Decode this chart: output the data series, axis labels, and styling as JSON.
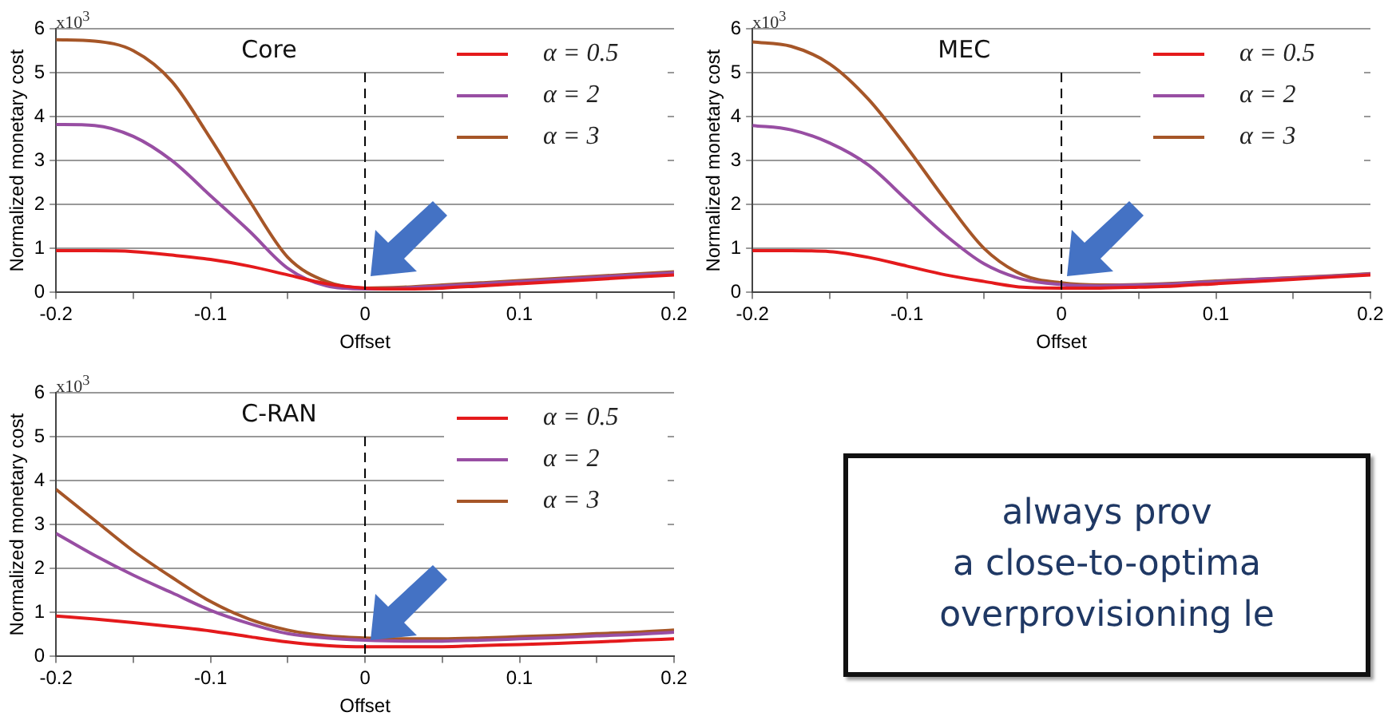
{
  "chart_data": [
    {
      "type": "line",
      "title": "Core",
      "xlabel": "Offset",
      "ylabel": "Normalized monetary cost",
      "annotations": [
        "x10$^{3}$"
      ],
      "x": [
        -0.2,
        -0.175,
        -0.15,
        -0.125,
        -0.1,
        -0.075,
        -0.05,
        -0.025,
        0,
        0.025,
        0.05,
        0.075,
        0.1,
        0.125,
        0.15,
        0.175,
        0.2
      ],
      "series": [
        {
          "name": "α = 0.5",
          "color": "#e41a1c",
          "values": [
            0.95,
            0.95,
            0.93,
            0.85,
            0.75,
            0.6,
            0.4,
            0.2,
            0.1,
            0.08,
            0.1,
            0.15,
            0.2,
            0.25,
            0.3,
            0.35,
            0.4
          ]
        },
        {
          "name": "α = 2",
          "color": "#984ea3",
          "values": [
            3.82,
            3.8,
            3.55,
            3.0,
            2.2,
            1.4,
            0.55,
            0.15,
            0.08,
            0.1,
            0.15,
            0.2,
            0.25,
            0.3,
            0.35,
            0.4,
            0.45
          ]
        },
        {
          "name": "α = 3",
          "color": "#a65628",
          "values": [
            5.75,
            5.72,
            5.5,
            4.8,
            3.5,
            2.1,
            0.8,
            0.25,
            0.1,
            0.12,
            0.17,
            0.22,
            0.27,
            0.32,
            0.37,
            0.42,
            0.47
          ]
        }
      ],
      "xlim": [
        -0.2,
        0.2
      ],
      "xticks": [
        -0.2,
        {
          "value": -0.15,
          "label": null
        },
        -0.1,
        {
          "value": -0.05,
          "label": null
        },
        0,
        {
          "value": 0.05,
          "label": null
        },
        0.1,
        {
          "value": 0.15,
          "label": null
        },
        0.2
      ],
      "ylim": [
        0,
        6
      ],
      "yticks": [
        0,
        1,
        2,
        3,
        4,
        5,
        6
      ],
      "grid": "y",
      "legend": "top right",
      "marker": "none",
      "line_style": "solid",
      "ref_lines": [
        {
          "axis": "x",
          "value": 0,
          "color": "#000000",
          "line_style": "dashed"
        }
      ]
    },
    {
      "type": "line",
      "title": "MEC",
      "xlabel": "Offset",
      "ylabel": "Normalized monetary cost",
      "annotations": [
        "x10$^{3}$"
      ],
      "x": [
        -0.2,
        -0.175,
        -0.15,
        -0.125,
        -0.1,
        -0.075,
        -0.05,
        -0.025,
        0,
        0.025,
        0.05,
        0.075,
        0.1,
        0.125,
        0.15,
        0.175,
        0.2
      ],
      "series": [
        {
          "name": "α = 0.5",
          "color": "#e41a1c",
          "values": [
            0.95,
            0.95,
            0.93,
            0.8,
            0.6,
            0.4,
            0.25,
            0.12,
            0.1,
            0.1,
            0.12,
            0.15,
            0.2,
            0.25,
            0.3,
            0.35,
            0.4
          ]
        },
        {
          "name": "α = 2",
          "color": "#984ea3",
          "values": [
            3.8,
            3.7,
            3.4,
            2.9,
            2.1,
            1.3,
            0.65,
            0.3,
            0.18,
            0.15,
            0.17,
            0.2,
            0.25,
            0.3,
            0.33,
            0.37,
            0.42
          ]
        },
        {
          "name": "α = 3",
          "color": "#a65628",
          "values": [
            5.7,
            5.6,
            5.2,
            4.4,
            3.3,
            2.1,
            1.0,
            0.4,
            0.22,
            0.17,
            0.18,
            0.21,
            0.26,
            0.3,
            0.34,
            0.38,
            0.43
          ]
        }
      ],
      "xlim": [
        -0.2,
        0.2
      ],
      "xticks": [
        -0.2,
        {
          "value": -0.15,
          "label": null
        },
        -0.1,
        {
          "value": -0.05,
          "label": null
        },
        0,
        {
          "value": 0.05,
          "label": null
        },
        0.1,
        {
          "value": 0.15,
          "label": null
        },
        0.2
      ],
      "ylim": [
        0,
        6
      ],
      "yticks": [
        0,
        1,
        2,
        3,
        4,
        5,
        6
      ],
      "grid": "y",
      "legend": "top right",
      "marker": "none",
      "line_style": "solid",
      "ref_lines": [
        {
          "axis": "x",
          "value": 0,
          "color": "#000000",
          "line_style": "dashed"
        }
      ]
    },
    {
      "type": "line",
      "title": "C-RAN",
      "xlabel": "Offset",
      "ylabel": "Normalized monetary cost",
      "annotations": [
        "x10$^{3}$"
      ],
      "x": [
        -0.2,
        -0.175,
        -0.15,
        -0.125,
        -0.1,
        -0.075,
        -0.05,
        -0.025,
        0,
        0.025,
        0.05,
        0.075,
        0.1,
        0.125,
        0.15,
        0.175,
        0.2
      ],
      "series": [
        {
          "name": "α = 0.5",
          "color": "#e41a1c",
          "values": [
            0.92,
            0.85,
            0.77,
            0.68,
            0.58,
            0.45,
            0.33,
            0.25,
            0.22,
            0.22,
            0.22,
            0.25,
            0.27,
            0.3,
            0.33,
            0.37,
            0.4
          ]
        },
        {
          "name": "α = 2",
          "color": "#984ea3",
          "values": [
            2.8,
            2.3,
            1.85,
            1.45,
            1.05,
            0.75,
            0.52,
            0.42,
            0.37,
            0.35,
            0.35,
            0.37,
            0.4,
            0.43,
            0.47,
            0.5,
            0.55
          ]
        },
        {
          "name": "α = 3",
          "color": "#a65628",
          "values": [
            3.8,
            3.1,
            2.4,
            1.8,
            1.25,
            0.85,
            0.6,
            0.47,
            0.42,
            0.4,
            0.4,
            0.42,
            0.45,
            0.48,
            0.52,
            0.55,
            0.6
          ]
        }
      ],
      "xlim": [
        -0.2,
        0.2
      ],
      "xticks": [
        -0.2,
        {
          "value": -0.15,
          "label": null
        },
        -0.1,
        {
          "value": -0.05,
          "label": null
        },
        0,
        {
          "value": 0.05,
          "label": null
        },
        0.1,
        {
          "value": 0.15,
          "label": null
        },
        0.2
      ],
      "ylim": [
        0,
        6
      ],
      "yticks": [
        0,
        1,
        2,
        3,
        4,
        5,
        6
      ],
      "grid": "y",
      "legend": "top right",
      "marker": "none",
      "line_style": "solid",
      "ref_lines": [
        {
          "axis": "x",
          "value": 0,
          "color": "#000000",
          "line_style": "dashed"
        }
      ]
    },
    {
      "type": "other",
      "annotations": [
        "always prov",
        "a close-to-optima",
        "overprovisioning le"
      ]
    }
  ]
}
